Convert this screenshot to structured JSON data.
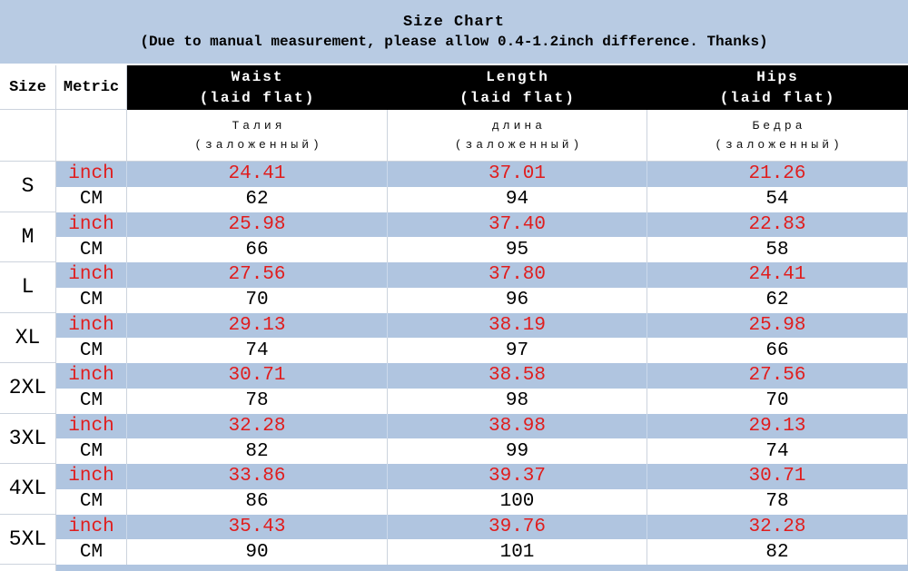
{
  "colors": {
    "banner_bg": "#b8cbe3",
    "row_blue": "#b0c5e0",
    "header_bg": "#000000",
    "header_text": "#ffffff",
    "accent_red": "#e01d1d",
    "border": "#ccd3dd"
  },
  "chart_data": {
    "type": "table",
    "title": "Size Chart",
    "subtitle": "(Due to manual measurement, please allow 0.4-1.2inch difference. Thanks)",
    "corner": {
      "size": "Size",
      "metric": "Metric"
    },
    "measures": [
      {
        "en": "Waist",
        "en_sub": "(laid flat)",
        "ru": "Талия",
        "ru_sub": "(заложенный)"
      },
      {
        "en": "Length",
        "en_sub": "(laid flat)",
        "ru": "длина",
        "ru_sub": "(заложенный)"
      },
      {
        "en": "Hips",
        "en_sub": "(laid flat)",
        "ru": "Бедра",
        "ru_sub": "(заложенный)"
      }
    ],
    "units": {
      "inch": "inch",
      "cm": "CM"
    },
    "sizes": [
      {
        "size": "S",
        "inch": {
          "waist": "24.41",
          "length": "37.01",
          "hips": "21.26"
        },
        "cm": {
          "waist": "62",
          "length": "94",
          "hips": "54"
        }
      },
      {
        "size": "M",
        "inch": {
          "waist": "25.98",
          "length": "37.40",
          "hips": "22.83"
        },
        "cm": {
          "waist": "66",
          "length": "95",
          "hips": "58"
        }
      },
      {
        "size": "L",
        "inch": {
          "waist": "27.56",
          "length": "37.80",
          "hips": "24.41"
        },
        "cm": {
          "waist": "70",
          "length": "96",
          "hips": "62"
        }
      },
      {
        "size": "XL",
        "inch": {
          "waist": "29.13",
          "length": "38.19",
          "hips": "25.98"
        },
        "cm": {
          "waist": "74",
          "length": "97",
          "hips": "66"
        }
      },
      {
        "size": "2XL",
        "inch": {
          "waist": "30.71",
          "length": "38.58",
          "hips": "27.56"
        },
        "cm": {
          "waist": "78",
          "length": "98",
          "hips": "70"
        }
      },
      {
        "size": "3XL",
        "inch": {
          "waist": "32.28",
          "length": "38.98",
          "hips": "29.13"
        },
        "cm": {
          "waist": "82",
          "length": "99",
          "hips": "74"
        }
      },
      {
        "size": "4XL",
        "inch": {
          "waist": "33.86",
          "length": "39.37",
          "hips": "30.71"
        },
        "cm": {
          "waist": "86",
          "length": "100",
          "hips": "78"
        }
      },
      {
        "size": "5XL",
        "inch": {
          "waist": "35.43",
          "length": "39.76",
          "hips": "32.28"
        },
        "cm": {
          "waist": "90",
          "length": "101",
          "hips": "82"
        }
      }
    ]
  }
}
